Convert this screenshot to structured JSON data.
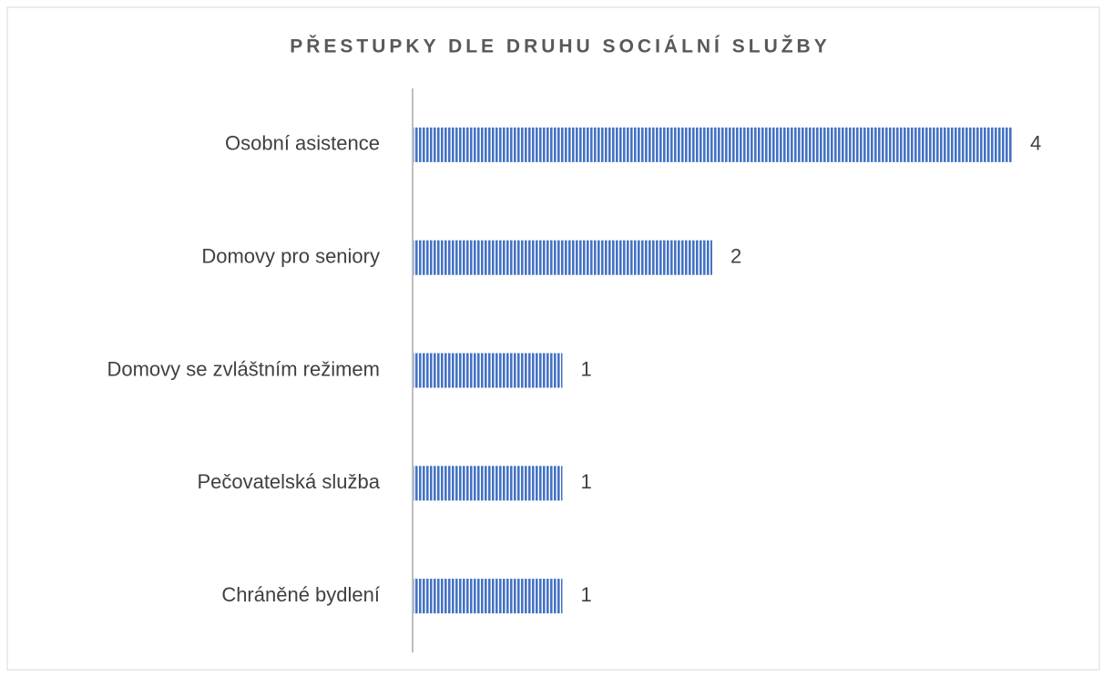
{
  "chart_data": {
    "type": "bar",
    "orientation": "horizontal",
    "title": "PŘESTUPKY DLE DRUHU SOCIÁLNÍ SLUŽBY",
    "categories": [
      "Osobní asistence",
      "Domovy pro seniory",
      "Domovy se zvláštním režimem",
      "Pečovatelská služba",
      "Chráněné bydlení"
    ],
    "values": [
      4,
      2,
      1,
      1,
      1
    ],
    "color": "#4472c4"
  }
}
